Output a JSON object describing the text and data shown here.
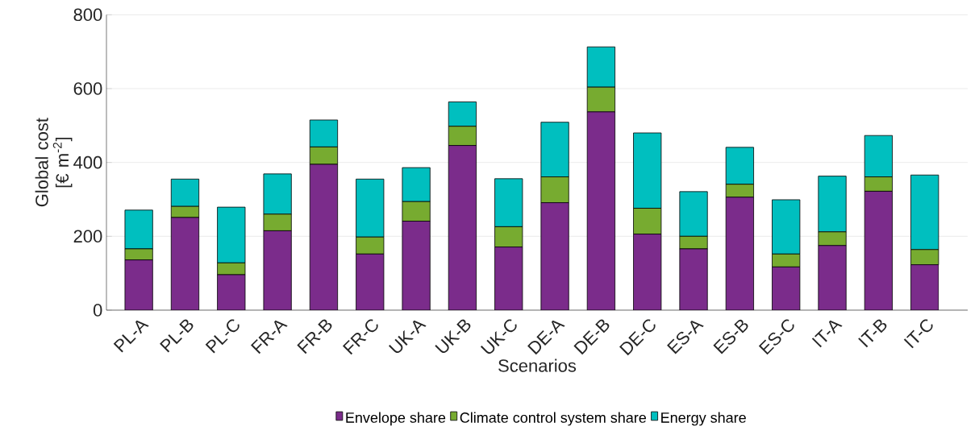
{
  "chart_data": {
    "type": "bar",
    "stacked": true,
    "xlabel": "Scenarios",
    "ylabel": "Global cost [€ m$^{-2}$]",
    "categories": [
      "PL-A",
      "PL-B",
      "PL-C",
      "FR-A",
      "FR-B",
      "FR-C",
      "UK-A",
      "UK-B",
      "UK-C",
      "DE-A",
      "DE-B",
      "DE-C",
      "ES-A",
      "ES-B",
      "ES-C",
      "IT-A",
      "IT-B",
      "IT-C"
    ],
    "series": [
      {
        "name": "Envelope share",
        "color": "#7b2c8b",
        "values": [
          136,
          251,
          96,
          215,
          395,
          152,
          241,
          446,
          171,
          291,
          537,
          206,
          166,
          306,
          117,
          175,
          322,
          123
        ]
      },
      {
        "name": "Climate control system share",
        "color": "#77ab30",
        "values": [
          30,
          30,
          32,
          45,
          47,
          46,
          53,
          52,
          55,
          70,
          67,
          70,
          34,
          35,
          35,
          37,
          39,
          41
        ]
      },
      {
        "name": "Energy share",
        "color": "#00bfbf",
        "values": [
          105,
          74,
          151,
          109,
          73,
          157,
          92,
          66,
          130,
          148,
          109,
          204,
          121,
          100,
          147,
          151,
          112,
          202
        ]
      }
    ],
    "ylim": [
      0,
      800
    ],
    "yticks": [
      0,
      200,
      400,
      600,
      800
    ],
    "grid": "y",
    "legend": "bottom"
  }
}
